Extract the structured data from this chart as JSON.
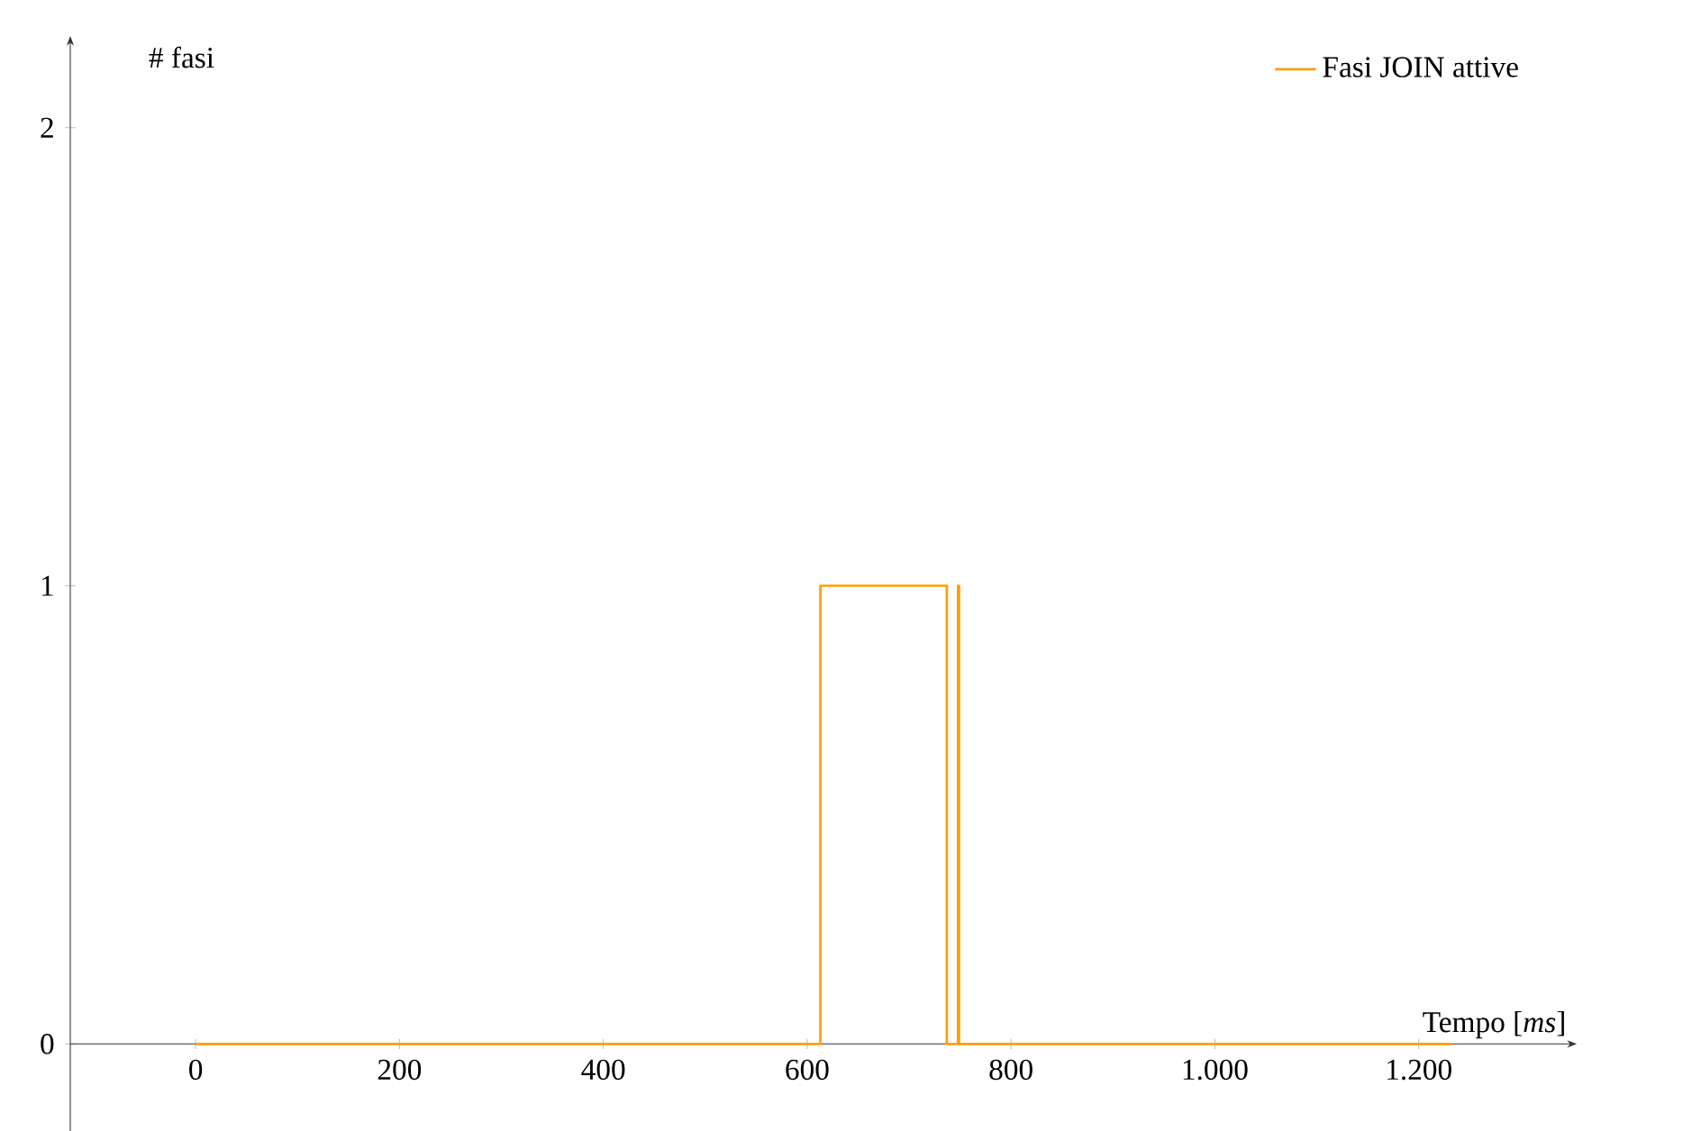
{
  "chart_data": {
    "type": "step",
    "xlabel": "Tempo [*ms*]",
    "ylabel": "# fasi",
    "x": [
      0,
      613,
      737,
      748,
      749,
      1233
    ],
    "series": [
      {
        "name": "Fasi JOIN attive",
        "color": "#ff9f00",
        "values": [
          0,
          1,
          0,
          1,
          0,
          0
        ]
      }
    ],
    "xlim": [
      -123,
      1355
    ],
    "ylim": [
      -0.19,
      2.2
    ],
    "xticks": [
      0,
      200,
      400,
      600,
      800,
      {
        "value": 1000,
        "label": "1.000"
      },
      {
        "value": 1200,
        "label": "1.200"
      }
    ],
    "yticks": [
      0,
      1,
      2
    ],
    "legend": "top right",
    "grid": false
  }
}
